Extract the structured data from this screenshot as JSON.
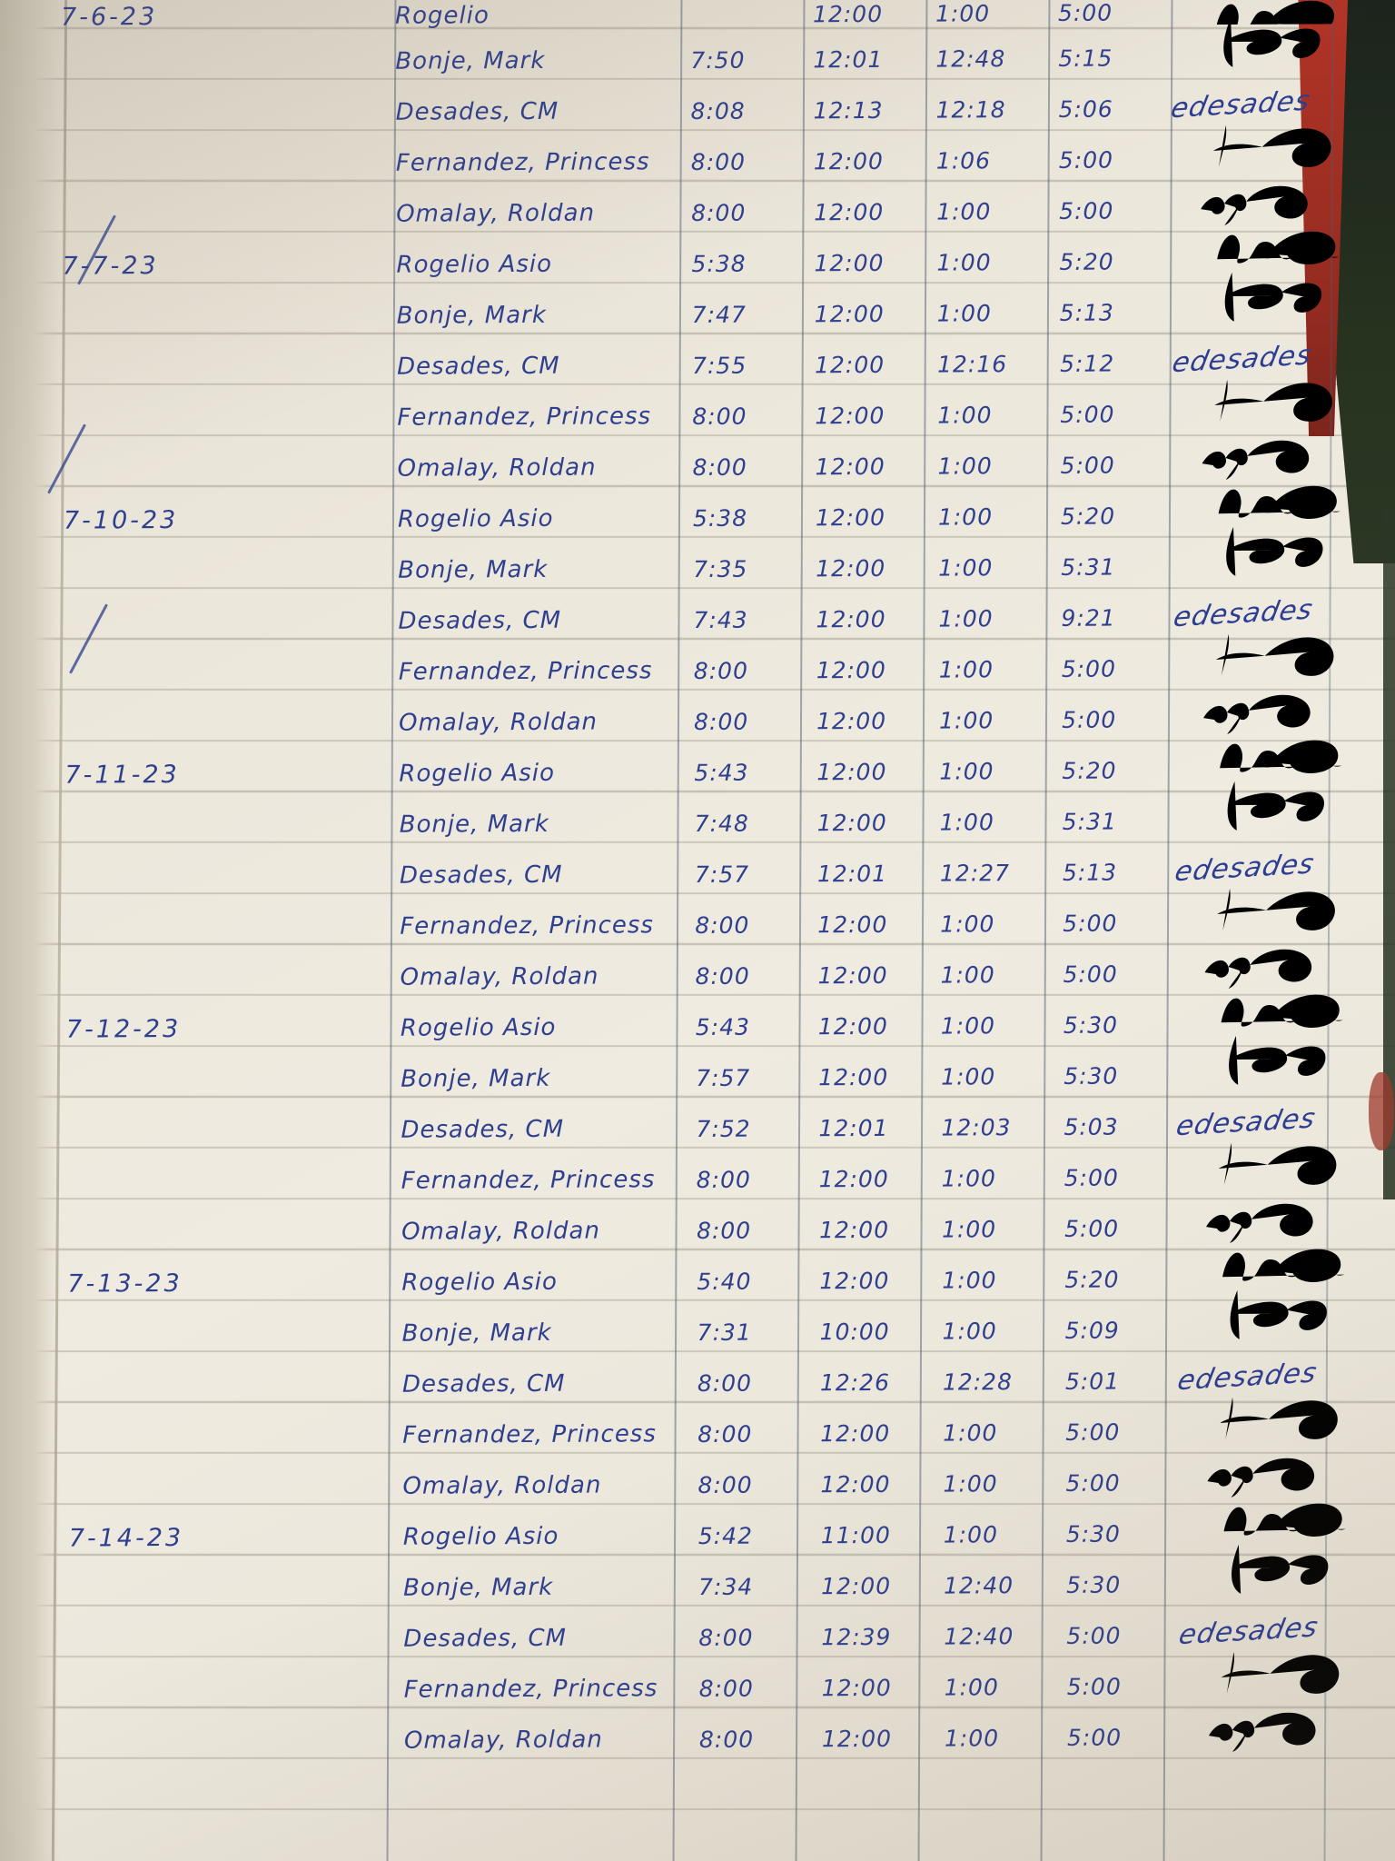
{
  "document": {
    "kind": "handwritten-attendance-time-log",
    "ink_color": "#2f3f8f",
    "paper_color": "#ece7db",
    "cover_red_color": "#a23226",
    "cover_dark_color": "#242e22"
  },
  "signatures": {
    "desades_reading": "edesades"
  },
  "log": {
    "groups": [
      {
        "date": "7-6-23",
        "rows": [
          {
            "name": "Rogelio",
            "times": [
              "",
              "12:00",
              "1:00",
              "5:00"
            ],
            "sig": "rogelio",
            "partial": true
          },
          {
            "name": "Bonje, Mark",
            "times": [
              "7:50",
              "12:01",
              "12:48",
              "5:15"
            ],
            "sig": "bonje"
          },
          {
            "name": "Desades, CM",
            "times": [
              "8:08",
              "12:13",
              "12:18",
              "5:06"
            ],
            "sig": "desades"
          },
          {
            "name": "Fernandez, Princess",
            "times": [
              "8:00",
              "12:00",
              "1:06",
              "5:00"
            ],
            "sig": "fernandez"
          },
          {
            "name": "Omalay, Roldan",
            "times": [
              "8:00",
              "12:00",
              "1:00",
              "5:00"
            ],
            "sig": "omalay"
          }
        ]
      },
      {
        "date": "7-7-23",
        "rows": [
          {
            "name": "Rogelio Asio",
            "times": [
              "5:38",
              "12:00",
              "1:00",
              "5:20"
            ],
            "sig": "rogelio"
          },
          {
            "name": "Bonje, Mark",
            "times": [
              "7:47",
              "12:00",
              "1:00",
              "5:13"
            ],
            "sig": "bonje"
          },
          {
            "name": "Desades, CM",
            "times": [
              "7:55",
              "12:00",
              "12:16",
              "5:12"
            ],
            "sig": "desades"
          },
          {
            "name": "Fernandez, Princess",
            "times": [
              "8:00",
              "12:00",
              "1:00",
              "5:00"
            ],
            "sig": "fernandez"
          },
          {
            "name": "Omalay, Roldan",
            "times": [
              "8:00",
              "12:00",
              "1:00",
              "5:00"
            ],
            "sig": "omalay"
          }
        ]
      },
      {
        "date": "7-10-23",
        "rows": [
          {
            "name": "Rogelio Asio",
            "times": [
              "5:38",
              "12:00",
              "1:00",
              "5:20"
            ],
            "sig": "rogelio"
          },
          {
            "name": "Bonje, Mark",
            "times": [
              "7:35",
              "12:00",
              "1:00",
              "5:31"
            ],
            "sig": "bonje"
          },
          {
            "name": "Desades, CM",
            "times": [
              "7:43",
              "12:00",
              "1:00",
              "9:21"
            ],
            "sig": "desades"
          },
          {
            "name": "Fernandez, Princess",
            "times": [
              "8:00",
              "12:00",
              "1:00",
              "5:00"
            ],
            "sig": "fernandez"
          },
          {
            "name": "Omalay, Roldan",
            "times": [
              "8:00",
              "12:00",
              "1:00",
              "5:00"
            ],
            "sig": "omalay"
          }
        ]
      },
      {
        "date": "7-11-23",
        "rows": [
          {
            "name": "Rogelio Asio",
            "times": [
              "5:43",
              "12:00",
              "1:00",
              "5:20"
            ],
            "sig": "rogelio"
          },
          {
            "name": "Bonje, Mark",
            "times": [
              "7:48",
              "12:00",
              "1:00",
              "5:31"
            ],
            "sig": "bonje"
          },
          {
            "name": "Desades, CM",
            "times": [
              "7:57",
              "12:01",
              "12:27",
              "5:13"
            ],
            "sig": "desades"
          },
          {
            "name": "Fernandez, Princess",
            "times": [
              "8:00",
              "12:00",
              "1:00",
              "5:00"
            ],
            "sig": "fernandez"
          },
          {
            "name": "Omalay, Roldan",
            "times": [
              "8:00",
              "12:00",
              "1:00",
              "5:00"
            ],
            "sig": "omalay"
          }
        ]
      },
      {
        "date": "7-12-23",
        "rows": [
          {
            "name": "Rogelio Asio",
            "times": [
              "5:43",
              "12:00",
              "1:00",
              "5:30"
            ],
            "sig": "rogelio"
          },
          {
            "name": "Bonje, Mark",
            "times": [
              "7:57",
              "12:00",
              "1:00",
              "5:30"
            ],
            "sig": "bonje"
          },
          {
            "name": "Desades, CM",
            "times": [
              "7:52",
              "12:01",
              "12:03",
              "5:03"
            ],
            "sig": "desades"
          },
          {
            "name": "Fernandez, Princess",
            "times": [
              "8:00",
              "12:00",
              "1:00",
              "5:00"
            ],
            "sig": "fernandez"
          },
          {
            "name": "Omalay, Roldan",
            "times": [
              "8:00",
              "12:00",
              "1:00",
              "5:00"
            ],
            "sig": "omalay"
          }
        ]
      },
      {
        "date": "7-13-23",
        "rows": [
          {
            "name": "Rogelio Asio",
            "times": [
              "5:40",
              "12:00",
              "1:00",
              "5:20"
            ],
            "sig": "rogelio"
          },
          {
            "name": "Bonje, Mark",
            "times": [
              "7:31",
              "10:00",
              "1:00",
              "5:09"
            ],
            "sig": "bonje"
          },
          {
            "name": "Desades, CM",
            "times": [
              "8:00",
              "12:26",
              "12:28",
              "5:01"
            ],
            "sig": "desades"
          },
          {
            "name": "Fernandez, Princess",
            "times": [
              "8:00",
              "12:00",
              "1:00",
              "5:00"
            ],
            "sig": "fernandez"
          },
          {
            "name": "Omalay, Roldan",
            "times": [
              "8:00",
              "12:00",
              "1:00",
              "5:00"
            ],
            "sig": "omalay"
          }
        ]
      },
      {
        "date": "7-14-23",
        "rows": [
          {
            "name": "Rogelio Asio",
            "times": [
              "5:42",
              "11:00",
              "1:00",
              "5:30"
            ],
            "sig": "rogelio"
          },
          {
            "name": "Bonje, Mark",
            "times": [
              "7:34",
              "12:00",
              "12:40",
              "5:30"
            ],
            "sig": "bonje"
          },
          {
            "name": "Desades, CM",
            "times": [
              "8:00",
              "12:39",
              "12:40",
              "5:00"
            ],
            "sig": "desades"
          },
          {
            "name": "Fernandez, Princess",
            "times": [
              "8:00",
              "12:00",
              "1:00",
              "5:00"
            ],
            "sig": "fernandez"
          },
          {
            "name": "Omalay, Roldan",
            "times": [
              "8:00",
              "12:00",
              "1:00",
              "5:00"
            ],
            "sig": "omalay"
          }
        ]
      }
    ]
  }
}
